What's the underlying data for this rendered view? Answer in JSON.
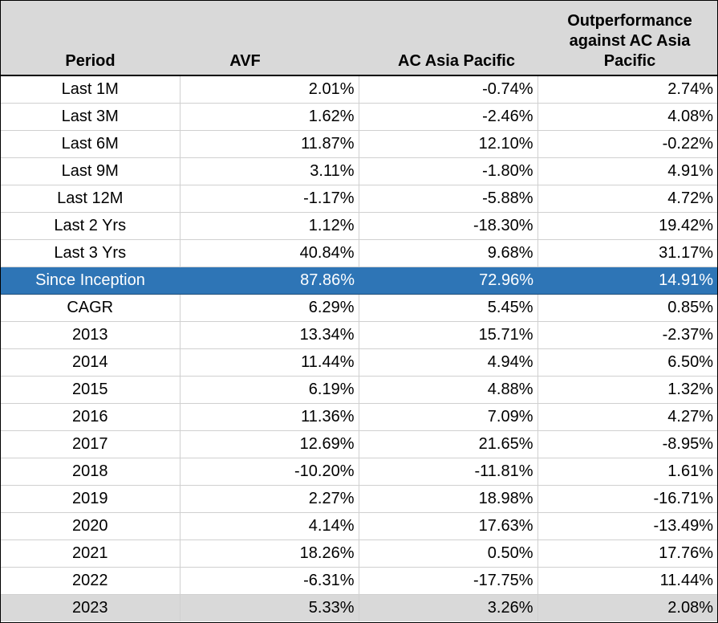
{
  "table": {
    "headers": {
      "period": "Period",
      "avf": "AVF",
      "index": "AC Asia Pacific",
      "outperformance": "Outperformance against AC Asia Pacific"
    },
    "rows": [
      {
        "period": "Last 1M",
        "avf": "2.01%",
        "index": "-0.74%",
        "outperformance": "2.74%"
      },
      {
        "period": "Last 3M",
        "avf": "1.62%",
        "index": "-2.46%",
        "outperformance": "4.08%"
      },
      {
        "period": "Last 6M",
        "avf": "11.87%",
        "index": "12.10%",
        "outperformance": "-0.22%"
      },
      {
        "period": "Last 9M",
        "avf": "3.11%",
        "index": "-1.80%",
        "outperformance": "4.91%"
      },
      {
        "period": "Last 12M",
        "avf": "-1.17%",
        "index": "-5.88%",
        "outperformance": "4.72%"
      },
      {
        "period": "Last 2 Yrs",
        "avf": "1.12%",
        "index": "-18.30%",
        "outperformance": "19.42%"
      },
      {
        "period": "Last 3 Yrs",
        "avf": "40.84%",
        "index": "9.68%",
        "outperformance": "31.17%"
      },
      {
        "period": "Since Inception",
        "avf": "87.86%",
        "index": "72.96%",
        "outperformance": "14.91%"
      },
      {
        "period": "CAGR",
        "avf": "6.29%",
        "index": "5.45%",
        "outperformance": "0.85%"
      },
      {
        "period": "2013",
        "avf": "13.34%",
        "index": "15.71%",
        "outperformance": "-2.37%"
      },
      {
        "period": "2014",
        "avf": "11.44%",
        "index": "4.94%",
        "outperformance": "6.50%"
      },
      {
        "period": "2015",
        "avf": "6.19%",
        "index": "4.88%",
        "outperformance": "1.32%"
      },
      {
        "period": "2016",
        "avf": "11.36%",
        "index": "7.09%",
        "outperformance": "4.27%"
      },
      {
        "period": "2017",
        "avf": "12.69%",
        "index": "21.65%",
        "outperformance": "-8.95%"
      },
      {
        "period": "2018",
        "avf": "-10.20%",
        "index": "-11.81%",
        "outperformance": "1.61%"
      },
      {
        "period": "2019",
        "avf": "2.27%",
        "index": "18.98%",
        "outperformance": "-16.71%"
      },
      {
        "period": "2020",
        "avf": "4.14%",
        "index": "17.63%",
        "outperformance": "-13.49%"
      },
      {
        "period": "2021",
        "avf": "18.26%",
        "index": "0.50%",
        "outperformance": "17.76%"
      },
      {
        "period": "2022",
        "avf": "-6.31%",
        "index": "-17.75%",
        "outperformance": "11.44%"
      },
      {
        "period": "2023",
        "avf": "5.33%",
        "index": "3.26%",
        "outperformance": "2.08%"
      }
    ]
  },
  "colors": {
    "header_background": "#d9d9d9",
    "highlight_background": "#2e75b6",
    "highlight_text": "#ffffff",
    "last_row_background": "#d9d9d9",
    "grid_line": "#d0d0d0"
  }
}
